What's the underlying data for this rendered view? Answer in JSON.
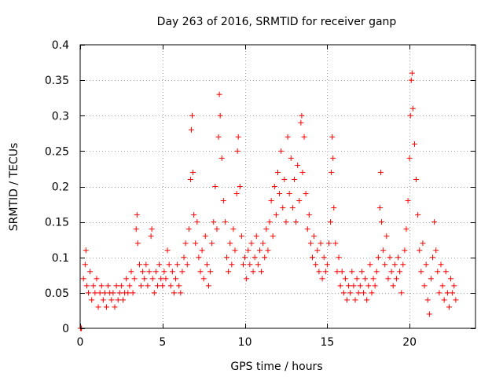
{
  "chart_data": {
    "type": "scatter",
    "title": "Day 263 of 2016, SRMTID for receiver ganp",
    "xlabel": "GPS time / hours",
    "ylabel": "SRMTID / TECUs",
    "xlim": [
      0,
      24
    ],
    "ylim": [
      0,
      0.4
    ],
    "xticks": [
      0,
      5,
      10,
      15,
      20
    ],
    "xtick_labels": [
      "0",
      "5",
      "10",
      "15",
      "20"
    ],
    "yticks": [
      0,
      0.05,
      0.1,
      0.15,
      0.2,
      0.25,
      0.3,
      0.35,
      0.4
    ],
    "ytick_labels": [
      "0",
      "0.05",
      "0.1",
      "0.15",
      "0.2",
      "0.25",
      "0.3",
      "0.35",
      "0.4"
    ],
    "grid": true,
    "marker": "+",
    "color": "#ff0000",
    "series": [
      {
        "name": "SRMTID",
        "points": [
          [
            0.02,
            0.0
          ],
          [
            0.05,
            0.0
          ],
          [
            0.08,
            0.0
          ],
          [
            0.2,
            0.07
          ],
          [
            0.3,
            0.09
          ],
          [
            0.35,
            0.11
          ],
          [
            0.4,
            0.06
          ],
          [
            0.5,
            0.05
          ],
          [
            0.6,
            0.08
          ],
          [
            0.7,
            0.04
          ],
          [
            0.8,
            0.06
          ],
          [
            0.9,
            0.05
          ],
          [
            1.0,
            0.07
          ],
          [
            1.1,
            0.03
          ],
          [
            1.2,
            0.05
          ],
          [
            1.3,
            0.06
          ],
          [
            1.4,
            0.04
          ],
          [
            1.5,
            0.05
          ],
          [
            1.6,
            0.03
          ],
          [
            1.7,
            0.06
          ],
          [
            1.8,
            0.05
          ],
          [
            1.9,
            0.04
          ],
          [
            2.0,
            0.05
          ],
          [
            2.1,
            0.03
          ],
          [
            2.2,
            0.06
          ],
          [
            2.3,
            0.04
          ],
          [
            2.4,
            0.05
          ],
          [
            2.5,
            0.06
          ],
          [
            2.6,
            0.04
          ],
          [
            2.7,
            0.05
          ],
          [
            2.8,
            0.07
          ],
          [
            2.9,
            0.05
          ],
          [
            3.0,
            0.06
          ],
          [
            3.1,
            0.08
          ],
          [
            3.2,
            0.05
          ],
          [
            3.3,
            0.07
          ],
          [
            3.4,
            0.14
          ],
          [
            3.45,
            0.16
          ],
          [
            3.5,
            0.12
          ],
          [
            3.6,
            0.09
          ],
          [
            3.7,
            0.06
          ],
          [
            3.8,
            0.08
          ],
          [
            3.9,
            0.07
          ],
          [
            4.0,
            0.09
          ],
          [
            4.1,
            0.06
          ],
          [
            4.2,
            0.08
          ],
          [
            4.3,
            0.13
          ],
          [
            4.35,
            0.14
          ],
          [
            4.4,
            0.07
          ],
          [
            4.5,
            0.05
          ],
          [
            4.6,
            0.08
          ],
          [
            4.7,
            0.06
          ],
          [
            4.8,
            0.09
          ],
          [
            4.9,
            0.07
          ],
          [
            5.0,
            0.06
          ],
          [
            5.1,
            0.08
          ],
          [
            5.2,
            0.07
          ],
          [
            5.3,
            0.11
          ],
          [
            5.4,
            0.09
          ],
          [
            5.5,
            0.06
          ],
          [
            5.6,
            0.08
          ],
          [
            5.7,
            0.05
          ],
          [
            5.8,
            0.07
          ],
          [
            5.9,
            0.09
          ],
          [
            6.0,
            0.06
          ],
          [
            6.1,
            0.05
          ],
          [
            6.2,
            0.08
          ],
          [
            6.3,
            0.1
          ],
          [
            6.4,
            0.12
          ],
          [
            6.5,
            0.09
          ],
          [
            6.6,
            0.14
          ],
          [
            6.7,
            0.21
          ],
          [
            6.75,
            0.28
          ],
          [
            6.8,
            0.3
          ],
          [
            6.85,
            0.22
          ],
          [
            6.9,
            0.16
          ],
          [
            7.0,
            0.12
          ],
          [
            7.1,
            0.15
          ],
          [
            7.2,
            0.1
          ],
          [
            7.3,
            0.08
          ],
          [
            7.4,
            0.11
          ],
          [
            7.5,
            0.07
          ],
          [
            7.6,
            0.13
          ],
          [
            7.7,
            0.09
          ],
          [
            7.8,
            0.06
          ],
          [
            7.9,
            0.08
          ],
          [
            8.0,
            0.12
          ],
          [
            8.1,
            0.15
          ],
          [
            8.2,
            0.2
          ],
          [
            8.3,
            0.14
          ],
          [
            8.4,
            0.27
          ],
          [
            8.45,
            0.33
          ],
          [
            8.5,
            0.3
          ],
          [
            8.6,
            0.24
          ],
          [
            8.7,
            0.18
          ],
          [
            8.8,
            0.15
          ],
          [
            8.9,
            0.1
          ],
          [
            9.0,
            0.08
          ],
          [
            9.1,
            0.12
          ],
          [
            9.2,
            0.09
          ],
          [
            9.3,
            0.14
          ],
          [
            9.4,
            0.11
          ],
          [
            9.5,
            0.19
          ],
          [
            9.55,
            0.25
          ],
          [
            9.6,
            0.27
          ],
          [
            9.7,
            0.2
          ],
          [
            9.8,
            0.13
          ],
          [
            9.9,
            0.09
          ],
          [
            10.0,
            0.1
          ],
          [
            10.1,
            0.07
          ],
          [
            10.2,
            0.11
          ],
          [
            10.3,
            0.09
          ],
          [
            10.4,
            0.12
          ],
          [
            10.5,
            0.08
          ],
          [
            10.6,
            0.1
          ],
          [
            10.7,
            0.13
          ],
          [
            10.8,
            0.09
          ],
          [
            10.9,
            0.11
          ],
          [
            11.0,
            0.08
          ],
          [
            11.1,
            0.12
          ],
          [
            11.2,
            0.1
          ],
          [
            11.3,
            0.14
          ],
          [
            11.4,
            0.11
          ],
          [
            11.5,
            0.15
          ],
          [
            11.6,
            0.18
          ],
          [
            11.7,
            0.13
          ],
          [
            11.8,
            0.2
          ],
          [
            11.9,
            0.16
          ],
          [
            12.0,
            0.22
          ],
          [
            12.1,
            0.19
          ],
          [
            12.2,
            0.25
          ],
          [
            12.3,
            0.17
          ],
          [
            12.4,
            0.21
          ],
          [
            12.5,
            0.15
          ],
          [
            12.6,
            0.27
          ],
          [
            12.7,
            0.19
          ],
          [
            12.8,
            0.24
          ],
          [
            12.9,
            0.17
          ],
          [
            13.0,
            0.21
          ],
          [
            13.1,
            0.15
          ],
          [
            13.2,
            0.23
          ],
          [
            13.3,
            0.18
          ],
          [
            13.4,
            0.29
          ],
          [
            13.45,
            0.3
          ],
          [
            13.5,
            0.22
          ],
          [
            13.6,
            0.27
          ],
          [
            13.7,
            0.19
          ],
          [
            13.8,
            0.14
          ],
          [
            13.9,
            0.16
          ],
          [
            14.0,
            0.12
          ],
          [
            14.1,
            0.1
          ],
          [
            14.2,
            0.13
          ],
          [
            14.3,
            0.09
          ],
          [
            14.4,
            0.11
          ],
          [
            14.5,
            0.08
          ],
          [
            14.6,
            0.12
          ],
          [
            14.7,
            0.07
          ],
          [
            14.8,
            0.1
          ],
          [
            14.9,
            0.08
          ],
          [
            15.0,
            0.09
          ],
          [
            15.1,
            0.12
          ],
          [
            15.2,
            0.15
          ],
          [
            15.25,
            0.22
          ],
          [
            15.3,
            0.27
          ],
          [
            15.35,
            0.24
          ],
          [
            15.4,
            0.17
          ],
          [
            15.5,
            0.12
          ],
          [
            15.6,
            0.08
          ],
          [
            15.7,
            0.1
          ],
          [
            15.8,
            0.06
          ],
          [
            15.9,
            0.08
          ],
          [
            16.0,
            0.05
          ],
          [
            16.1,
            0.07
          ],
          [
            16.2,
            0.04
          ],
          [
            16.3,
            0.06
          ],
          [
            16.4,
            0.05
          ],
          [
            16.5,
            0.08
          ],
          [
            16.6,
            0.06
          ],
          [
            16.7,
            0.04
          ],
          [
            16.8,
            0.07
          ],
          [
            16.9,
            0.05
          ],
          [
            17.0,
            0.06
          ],
          [
            17.1,
            0.08
          ],
          [
            17.2,
            0.05
          ],
          [
            17.3,
            0.07
          ],
          [
            17.4,
            0.04
          ],
          [
            17.5,
            0.06
          ],
          [
            17.6,
            0.09
          ],
          [
            17.7,
            0.05
          ],
          [
            17.8,
            0.07
          ],
          [
            17.9,
            0.06
          ],
          [
            18.0,
            0.08
          ],
          [
            18.1,
            0.1
          ],
          [
            18.2,
            0.17
          ],
          [
            18.25,
            0.22
          ],
          [
            18.3,
            0.15
          ],
          [
            18.4,
            0.11
          ],
          [
            18.5,
            0.09
          ],
          [
            18.6,
            0.13
          ],
          [
            18.7,
            0.07
          ],
          [
            18.8,
            0.1
          ],
          [
            18.9,
            0.08
          ],
          [
            19.0,
            0.06
          ],
          [
            19.1,
            0.09
          ],
          [
            19.2,
            0.07
          ],
          [
            19.3,
            0.1
          ],
          [
            19.4,
            0.08
          ],
          [
            19.5,
            0.05
          ],
          [
            19.6,
            0.09
          ],
          [
            19.7,
            0.11
          ],
          [
            19.8,
            0.14
          ],
          [
            19.9,
            0.18
          ],
          [
            20.0,
            0.24
          ],
          [
            20.05,
            0.3
          ],
          [
            20.1,
            0.35
          ],
          [
            20.15,
            0.36
          ],
          [
            20.2,
            0.31
          ],
          [
            20.3,
            0.26
          ],
          [
            20.4,
            0.21
          ],
          [
            20.5,
            0.16
          ],
          [
            20.6,
            0.11
          ],
          [
            20.7,
            0.08
          ],
          [
            20.8,
            0.12
          ],
          [
            20.9,
            0.06
          ],
          [
            21.0,
            0.09
          ],
          [
            21.1,
            0.04
          ],
          [
            21.2,
            0.02
          ],
          [
            21.3,
            0.07
          ],
          [
            21.4,
            0.1
          ],
          [
            21.5,
            0.15
          ],
          [
            21.6,
            0.11
          ],
          [
            21.7,
            0.08
          ],
          [
            21.8,
            0.05
          ],
          [
            21.9,
            0.09
          ],
          [
            22.0,
            0.06
          ],
          [
            22.1,
            0.04
          ],
          [
            22.2,
            0.08
          ],
          [
            22.3,
            0.05
          ],
          [
            22.4,
            0.03
          ],
          [
            22.5,
            0.07
          ],
          [
            22.6,
            0.05
          ],
          [
            22.7,
            0.06
          ],
          [
            22.8,
            0.04
          ]
        ]
      }
    ]
  }
}
